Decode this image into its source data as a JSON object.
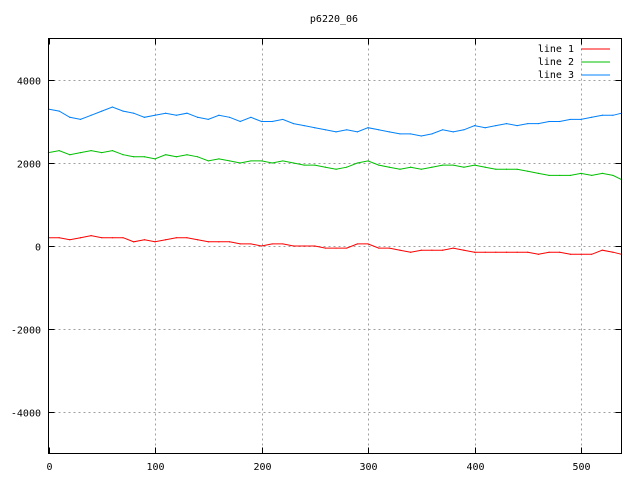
{
  "chart_data": {
    "type": "line",
    "title": "p6220_06",
    "xlabel": "",
    "ylabel": "",
    "xlim": [
      0,
      538
    ],
    "ylim": [
      -5000,
      5000
    ],
    "xticks": [
      0,
      100,
      200,
      300,
      400,
      500
    ],
    "yticks": [
      -4000,
      -2000,
      0,
      2000,
      4000
    ],
    "grid": true,
    "legend_position": "top-right",
    "x": [
      0,
      10,
      20,
      30,
      40,
      50,
      60,
      70,
      80,
      90,
      100,
      110,
      120,
      130,
      140,
      150,
      160,
      170,
      180,
      190,
      200,
      210,
      220,
      230,
      240,
      250,
      260,
      270,
      280,
      290,
      300,
      310,
      320,
      330,
      340,
      350,
      360,
      370,
      380,
      390,
      400,
      410,
      420,
      430,
      440,
      450,
      460,
      470,
      480,
      490,
      500,
      510,
      520,
      530,
      538
    ],
    "series": [
      {
        "name": "line 1",
        "color": "#ff0000",
        "values": [
          200,
          200,
          150,
          200,
          250,
          200,
          200,
          200,
          100,
          150,
          100,
          150,
          200,
          200,
          150,
          100,
          100,
          100,
          50,
          50,
          0,
          50,
          50,
          0,
          0,
          0,
          -50,
          -50,
          -50,
          50,
          50,
          -50,
          -50,
          -100,
          -150,
          -100,
          -100,
          -100,
          -50,
          -100,
          -150,
          -150,
          -150,
          -150,
          -150,
          -150,
          -200,
          -150,
          -150,
          -200,
          -200,
          -200,
          -100,
          -150,
          -200
        ]
      },
      {
        "name": "line 2",
        "color": "#00c000",
        "values": [
          2250,
          2300,
          2200,
          2250,
          2300,
          2250,
          2300,
          2200,
          2150,
          2150,
          2100,
          2200,
          2150,
          2200,
          2150,
          2050,
          2100,
          2050,
          2000,
          2050,
          2050,
          2000,
          2050,
          2000,
          1950,
          1950,
          1900,
          1850,
          1900,
          2000,
          2050,
          1950,
          1900,
          1850,
          1900,
          1850,
          1900,
          1950,
          1950,
          1900,
          1950,
          1900,
          1850,
          1850,
          1850,
          1800,
          1750,
          1700,
          1700,
          1700,
          1750,
          1700,
          1750,
          1700,
          1600
        ]
      },
      {
        "name": "line 3",
        "color": "#0080ff",
        "values": [
          3300,
          3250,
          3100,
          3050,
          3150,
          3250,
          3350,
          3250,
          3200,
          3100,
          3150,
          3200,
          3150,
          3200,
          3100,
          3050,
          3150,
          3100,
          3000,
          3100,
          3000,
          3000,
          3050,
          2950,
          2900,
          2850,
          2800,
          2750,
          2800,
          2750,
          2850,
          2800,
          2750,
          2700,
          2700,
          2650,
          2700,
          2800,
          2750,
          2800,
          2900,
          2850,
          2900,
          2950,
          2900,
          2950,
          2950,
          3000,
          3000,
          3050,
          3050,
          3100,
          3150,
          3150,
          3200
        ]
      }
    ]
  }
}
